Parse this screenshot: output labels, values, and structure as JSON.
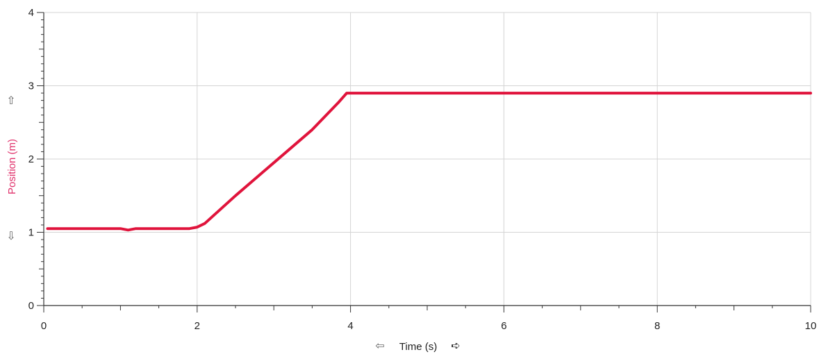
{
  "chart_data": {
    "type": "line",
    "xlabel": "Time (s)",
    "ylabel": "Position (m)",
    "xlim": [
      0,
      10
    ],
    "ylim": [
      0,
      4
    ],
    "x_ticks": [
      0,
      2,
      4,
      6,
      8,
      10
    ],
    "y_ticks": [
      0,
      1,
      2,
      3,
      4
    ],
    "x_tick_labels": [
      "0",
      "2",
      "4",
      "6",
      "8",
      "10"
    ],
    "y_tick_labels": [
      "0",
      "1",
      "2",
      "3",
      "4"
    ],
    "grid": true,
    "series": [
      {
        "x": [
          0.05,
          0.5,
          1.0,
          1.1,
          1.2,
          1.5,
          1.9,
          2.0,
          2.1,
          2.5,
          3.0,
          3.5,
          3.85,
          3.95,
          4.5,
          6.0,
          8.0,
          10.0
        ],
        "y": [
          1.05,
          1.05,
          1.05,
          1.03,
          1.05,
          1.05,
          1.05,
          1.07,
          1.12,
          1.5,
          1.95,
          2.4,
          2.78,
          2.9,
          2.9,
          2.9,
          2.9,
          2.9
        ]
      }
    ]
  },
  "colors": {
    "series": "#e0143c",
    "ylabel": "#e0306a",
    "grid": "#d4d4d4",
    "axis": "#333333",
    "arrows": "#666666"
  },
  "icons": {
    "y_up": "outline-up-arrow-icon",
    "y_down": "outline-down-arrow-icon",
    "x_left": "outline-left-arrow-icon",
    "x_right": "filled-right-arrow-icon"
  }
}
